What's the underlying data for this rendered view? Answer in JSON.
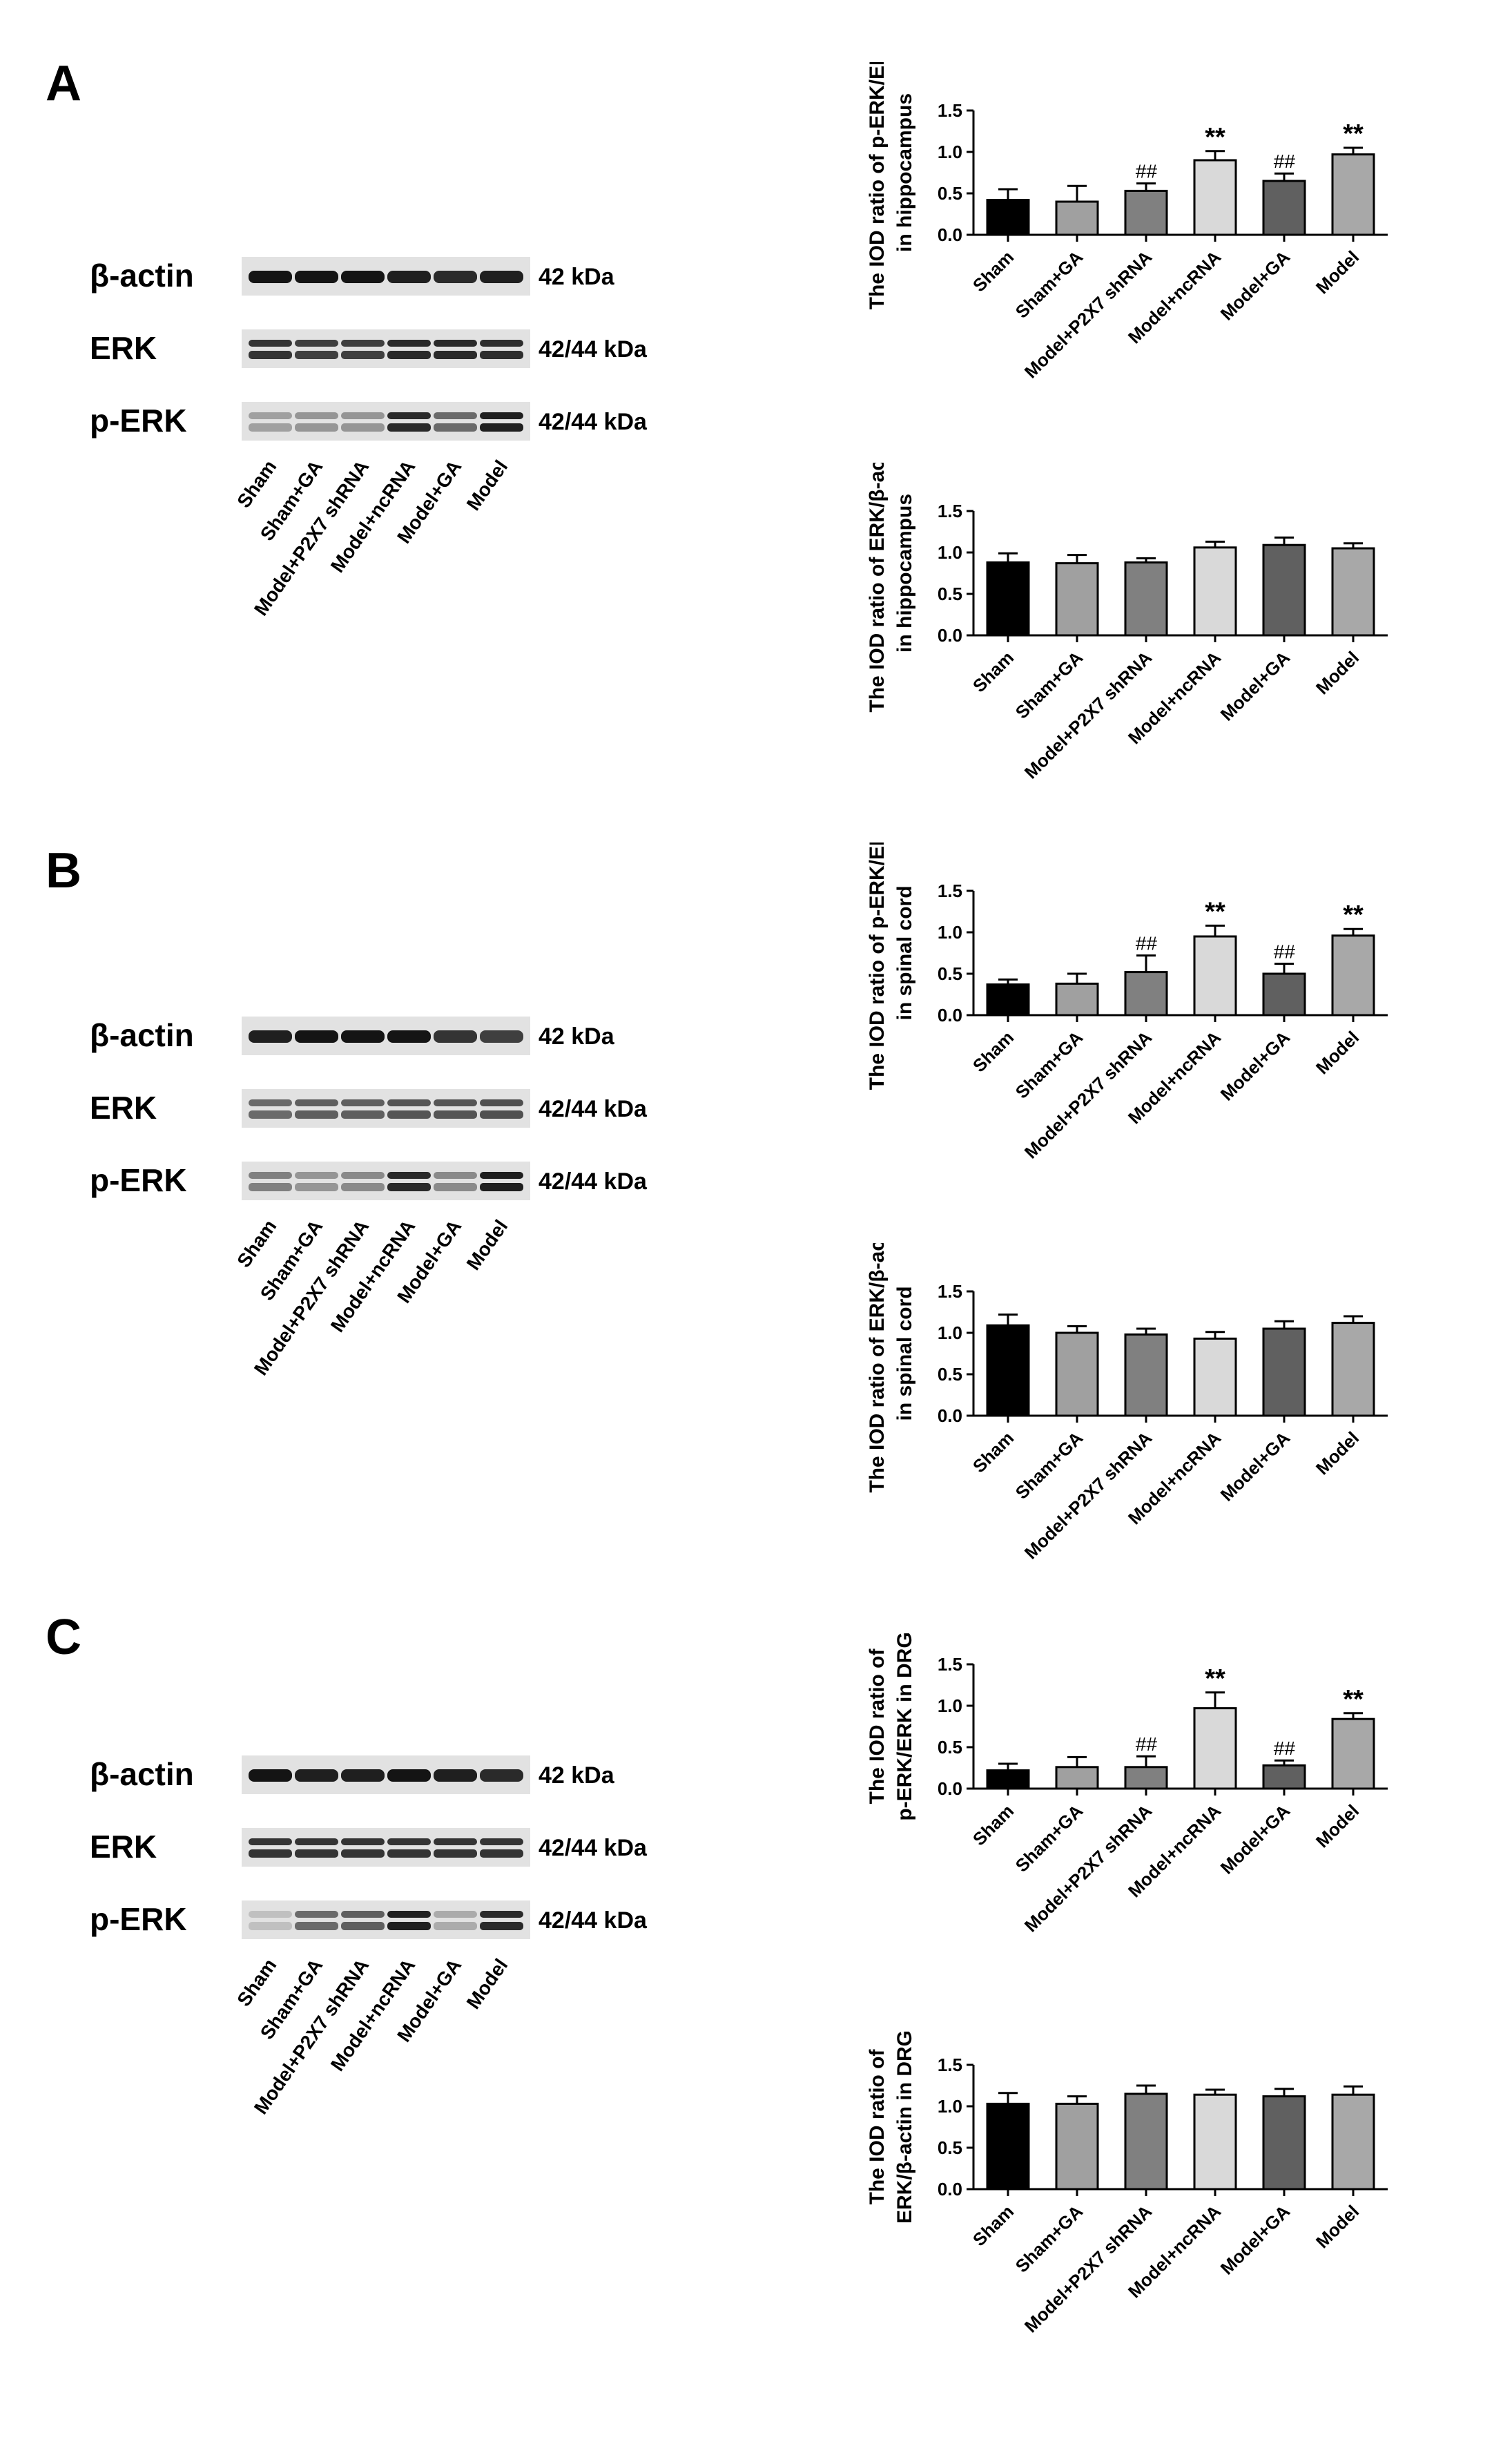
{
  "panels": [
    {
      "letter": "A",
      "blot": {
        "rows": [
          {
            "label": "β-actin",
            "kda": "42 kDa",
            "bands": 1,
            "intensity": [
              1,
              1,
              1,
              0.95,
              0.9,
              0.95
            ]
          },
          {
            "label": "ERK",
            "kda": "42/44 kDa",
            "bands": 2,
            "intensity": [
              0.85,
              0.8,
              0.8,
              0.9,
              0.9,
              0.88
            ]
          },
          {
            "label": "p-ERK",
            "kda": "42/44 kDa",
            "bands": 2,
            "intensity": [
              0.35,
              0.4,
              0.4,
              0.9,
              0.6,
              0.95
            ]
          }
        ],
        "lanes": [
          "Sham",
          "Sham+GA",
          "Model+P2X7 shRNA",
          "Model+ncRNA",
          "Model+GA",
          "Model"
        ]
      }
    },
    {
      "letter": "B",
      "blot": {
        "rows": [
          {
            "label": "β-actin",
            "kda": "42 kDa",
            "bands": 1,
            "intensity": [
              0.95,
              1,
              1,
              1,
              0.85,
              0.8
            ]
          },
          {
            "label": "ERK",
            "kda": "42/44 kDa",
            "bands": 2,
            "intensity": [
              0.6,
              0.65,
              0.65,
              0.7,
              0.7,
              0.72
            ]
          },
          {
            "label": "p-ERK",
            "kda": "42/44 kDa",
            "bands": 2,
            "intensity": [
              0.5,
              0.4,
              0.45,
              0.9,
              0.45,
              0.95
            ]
          }
        ],
        "lanes": [
          "Sham",
          "Sham+GA",
          "Model+P2X7 shRNA",
          "Model+ncRNA",
          "Model+GA",
          "Model"
        ]
      }
    },
    {
      "letter": "C",
      "blot": {
        "rows": [
          {
            "label": "β-actin",
            "kda": "42 kDa",
            "bands": 1,
            "intensity": [
              1,
              0.95,
              0.95,
              1,
              0.95,
              0.9
            ]
          },
          {
            "label": "ERK",
            "kda": "42/44 kDa",
            "bands": 2,
            "intensity": [
              0.85,
              0.85,
              0.85,
              0.85,
              0.85,
              0.85
            ]
          },
          {
            "label": "p-ERK",
            "kda": "42/44 kDa",
            "bands": 2,
            "intensity": [
              0.2,
              0.6,
              0.65,
              0.95,
              0.3,
              0.9
            ]
          }
        ],
        "lanes": [
          "Sham",
          "Sham+GA",
          "Model+P2X7 shRNA",
          "Model+ncRNA",
          "Model+GA",
          "Model"
        ]
      }
    }
  ],
  "colors": {
    "bars": [
      "#000000",
      "#a0a0a0",
      "#808080",
      "#d9d9d9",
      "#606060",
      "#a8a8a8"
    ]
  },
  "chart_data": [
    {
      "type": "bar",
      "ylabel_lines": [
        "The IOD ratio of p-ERK/ERK",
        "in hippocampus"
      ],
      "categories": [
        "Sham",
        "Sham+GA",
        "Model+P2X7 shRNA",
        "Model+ncRNA",
        "Model+GA",
        "Model"
      ],
      "values": [
        0.42,
        0.4,
        0.53,
        0.9,
        0.65,
        0.97
      ],
      "errors": [
        0.13,
        0.19,
        0.09,
        0.11,
        0.09,
        0.08
      ],
      "annotations": [
        "",
        "",
        "##",
        "**",
        "##",
        "**"
      ],
      "ylim": [
        0,
        1.5
      ],
      "yticks": [
        "0.0",
        "0.5",
        "1.0",
        "1.5"
      ]
    },
    {
      "type": "bar",
      "ylabel_lines": [
        "The IOD ratio of ERK/β-actin",
        "in hippocampus"
      ],
      "categories": [
        "Sham",
        "Sham+GA",
        "Model+P2X7 shRNA",
        "Model+ncRNA",
        "Model+GA",
        "Model"
      ],
      "values": [
        0.88,
        0.87,
        0.88,
        1.06,
        1.09,
        1.05
      ],
      "errors": [
        0.11,
        0.1,
        0.05,
        0.07,
        0.09,
        0.06
      ],
      "annotations": [
        "",
        "",
        "",
        "",
        "",
        ""
      ],
      "ylim": [
        0,
        1.5
      ],
      "yticks": [
        "0.0",
        "0.5",
        "1.0",
        "1.5"
      ]
    },
    {
      "type": "bar",
      "ylabel_lines": [
        "The IOD ratio of p-ERK/ERK",
        "in spinal cord"
      ],
      "categories": [
        "Sham",
        "Sham+GA",
        "Model+P2X7 shRNA",
        "Model+ncRNA",
        "Model+GA",
        "Model"
      ],
      "values": [
        0.37,
        0.38,
        0.52,
        0.95,
        0.5,
        0.96
      ],
      "errors": [
        0.06,
        0.12,
        0.2,
        0.13,
        0.12,
        0.08
      ],
      "annotations": [
        "",
        "",
        "##",
        "**",
        "##",
        "**"
      ],
      "ylim": [
        0,
        1.5
      ],
      "yticks": [
        "0.0",
        "0.5",
        "1.0",
        "1.5"
      ]
    },
    {
      "type": "bar",
      "ylabel_lines": [
        "The IOD ratio of ERK/β-actin",
        "in spinal cord"
      ],
      "categories": [
        "Sham",
        "Sham+GA",
        "Model+P2X7 shRNA",
        "Model+ncRNA",
        "Model+GA",
        "Model"
      ],
      "values": [
        1.09,
        1.0,
        0.98,
        0.93,
        1.05,
        1.12
      ],
      "errors": [
        0.13,
        0.08,
        0.07,
        0.08,
        0.09,
        0.08
      ],
      "annotations": [
        "",
        "",
        "",
        "",
        "",
        ""
      ],
      "ylim": [
        0,
        1.5
      ],
      "yticks": [
        "0.0",
        "0.5",
        "1.0",
        "1.5"
      ]
    },
    {
      "type": "bar",
      "ylabel_lines": [
        "The IOD ratio of",
        "p-ERK/ERK in DRG"
      ],
      "categories": [
        "Sham",
        "Sham+GA",
        "Model+P2X7 shRNA",
        "Model+ncRNA",
        "Model+GA",
        "Model"
      ],
      "values": [
        0.22,
        0.26,
        0.26,
        0.97,
        0.28,
        0.84
      ],
      "errors": [
        0.08,
        0.12,
        0.13,
        0.19,
        0.06,
        0.07
      ],
      "annotations": [
        "",
        "",
        "##",
        "**",
        "##",
        "**"
      ],
      "ylim": [
        0,
        1.5
      ],
      "yticks": [
        "0.0",
        "0.5",
        "1.0",
        "1.5"
      ]
    },
    {
      "type": "bar",
      "ylabel_lines": [
        "The IOD ratio of",
        "ERK/β-actin in DRG"
      ],
      "categories": [
        "Sham",
        "Sham+GA",
        "Model+P2X7 shRNA",
        "Model+ncRNA",
        "Model+GA",
        "Model"
      ],
      "values": [
        1.03,
        1.03,
        1.15,
        1.14,
        1.12,
        1.14
      ],
      "errors": [
        0.13,
        0.09,
        0.1,
        0.06,
        0.09,
        0.1
      ],
      "annotations": [
        "",
        "",
        "",
        "",
        "",
        ""
      ],
      "ylim": [
        0,
        1.5
      ],
      "yticks": [
        "0.0",
        "0.5",
        "1.0",
        "1.5"
      ]
    }
  ]
}
